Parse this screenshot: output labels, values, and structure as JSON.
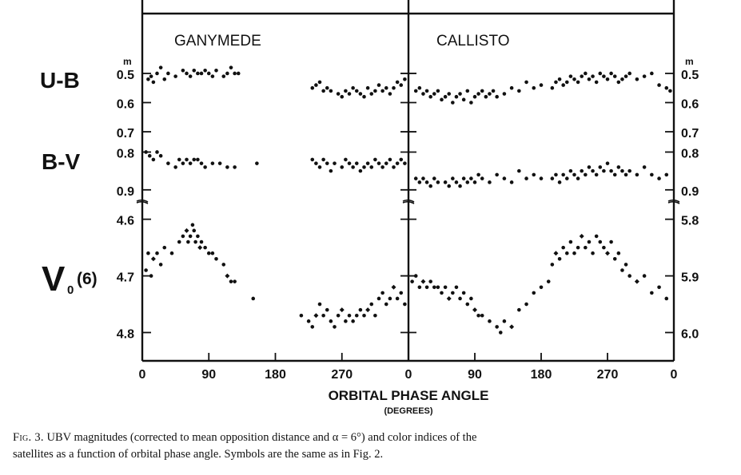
{
  "figure": {
    "panels": [
      {
        "id": "ganymede",
        "title": "GANYMEDE",
        "x_ticks": [
          "0",
          "90",
          "180",
          "270"
        ]
      },
      {
        "id": "callisto",
        "title": "CALLISTO",
        "x_ticks": [
          "0",
          "90",
          "180",
          "270",
          "0"
        ]
      }
    ],
    "row_labels": {
      "ub": "U-B",
      "bv": "B-V",
      "v0_main": "V",
      "v0_sub": "0",
      "v0_paren": "(6)"
    },
    "mag_superscript": "m",
    "left_ticks": {
      "ub": [
        "0.5",
        "0.6",
        "0.7"
      ],
      "bv": [
        "0.8",
        "0.9"
      ],
      "v": [
        "4.6",
        "4.7",
        "4.8"
      ]
    },
    "right_ticks": {
      "ub": [
        "0.5",
        "0.6",
        "0.7"
      ],
      "bv": [
        "0.8",
        "0.9"
      ],
      "v": [
        "5.8",
        "5.9",
        "6.0"
      ]
    },
    "x_axis_label": "ORBITAL PHASE ANGLE",
    "x_axis_units": "(DEGREES)"
  },
  "caption": {
    "lead": "Fig. 3.",
    "line1": " UBV magnitudes (corrected to mean opposition distance and α = 6°) and color indices of the",
    "line2": "satellites as a function of orbital phase angle. Symbols are the same as in Fig. 2."
  },
  "chart_data": [
    {
      "type": "scatter",
      "title": "GANYMEDE",
      "xlabel": "ORBITAL PHASE ANGLE",
      "xlim": [
        0,
        360
      ],
      "series": [
        {
          "name": "U-B",
          "ylim": [
            0.47,
            0.73
          ],
          "x": [
            8,
            12,
            15,
            20,
            25,
            30,
            35,
            45,
            55,
            60,
            65,
            70,
            75,
            80,
            85,
            90,
            95,
            100,
            110,
            115,
            120,
            125,
            130,
            230,
            235,
            240,
            245,
            250,
            255,
            265,
            270,
            275,
            280,
            285,
            290,
            295,
            300,
            305,
            310,
            315,
            320,
            325,
            330,
            335,
            340,
            345,
            350,
            355
          ],
          "y": [
            0.52,
            0.51,
            0.53,
            0.5,
            0.48,
            0.52,
            0.5,
            0.51,
            0.49,
            0.5,
            0.51,
            0.49,
            0.5,
            0.5,
            0.49,
            0.5,
            0.51,
            0.49,
            0.51,
            0.5,
            0.48,
            0.5,
            0.5,
            0.55,
            0.54,
            0.53,
            0.56,
            0.55,
            0.56,
            0.57,
            0.58,
            0.56,
            0.57,
            0.55,
            0.56,
            0.57,
            0.58,
            0.55,
            0.57,
            0.56,
            0.54,
            0.56,
            0.55,
            0.57,
            0.55,
            0.53,
            0.54,
            0.52
          ]
        },
        {
          "name": "B-V",
          "ylim": [
            0.78,
            0.93
          ],
          "x": [
            5,
            10,
            15,
            20,
            25,
            35,
            45,
            50,
            55,
            60,
            65,
            70,
            75,
            80,
            85,
            95,
            105,
            115,
            125,
            155,
            230,
            235,
            240,
            245,
            250,
            255,
            260,
            270,
            275,
            280,
            285,
            290,
            295,
            300,
            305,
            310,
            315,
            320,
            325,
            330,
            335,
            340,
            345,
            350,
            355
          ],
          "y": [
            0.8,
            0.81,
            0.82,
            0.8,
            0.81,
            0.83,
            0.84,
            0.82,
            0.83,
            0.82,
            0.83,
            0.82,
            0.82,
            0.83,
            0.84,
            0.83,
            0.83,
            0.84,
            0.84,
            0.83,
            0.82,
            0.83,
            0.84,
            0.82,
            0.83,
            0.85,
            0.83,
            0.84,
            0.82,
            0.83,
            0.84,
            0.83,
            0.85,
            0.84,
            0.83,
            0.84,
            0.82,
            0.83,
            0.84,
            0.83,
            0.82,
            0.84,
            0.83,
            0.82,
            0.83
          ]
        },
        {
          "name": "V0(6)",
          "ylim": [
            4.585,
            4.85
          ],
          "x": [
            5,
            8,
            12,
            15,
            20,
            25,
            30,
            40,
            50,
            55,
            60,
            62,
            65,
            68,
            70,
            72,
            75,
            78,
            80,
            85,
            90,
            95,
            100,
            110,
            115,
            120,
            125,
            150,
            215,
            225,
            230,
            235,
            240,
            245,
            250,
            255,
            260,
            265,
            270,
            275,
            280,
            285,
            290,
            295,
            300,
            305,
            310,
            315,
            320,
            325,
            330,
            335,
            340,
            345,
            350,
            355
          ],
          "y": [
            4.69,
            4.66,
            4.7,
            4.67,
            4.66,
            4.68,
            4.65,
            4.66,
            4.64,
            4.63,
            4.62,
            4.64,
            4.63,
            4.61,
            4.62,
            4.64,
            4.63,
            4.65,
            4.64,
            4.65,
            4.66,
            4.66,
            4.67,
            4.68,
            4.7,
            4.71,
            4.71,
            4.74,
            4.77,
            4.78,
            4.79,
            4.77,
            4.75,
            4.77,
            4.76,
            4.78,
            4.79,
            4.77,
            4.76,
            4.78,
            4.77,
            4.78,
            4.77,
            4.76,
            4.77,
            4.76,
            4.75,
            4.77,
            4.74,
            4.73,
            4.75,
            4.74,
            4.72,
            4.74,
            4.73,
            4.75
          ]
        }
      ]
    },
    {
      "type": "scatter",
      "title": "CALLISTO",
      "xlabel": "ORBITAL PHASE ANGLE",
      "xlim": [
        0,
        360
      ],
      "series": [
        {
          "name": "U-B",
          "ylim": [
            0.47,
            0.73
          ],
          "x": [
            10,
            15,
            20,
            25,
            30,
            35,
            40,
            45,
            50,
            55,
            60,
            65,
            70,
            75,
            80,
            85,
            90,
            95,
            100,
            105,
            110,
            115,
            120,
            130,
            140,
            150,
            160,
            170,
            180,
            195,
            200,
            205,
            210,
            215,
            220,
            225,
            230,
            235,
            240,
            245,
            250,
            255,
            260,
            265,
            270,
            275,
            280,
            285,
            290,
            295,
            300,
            310,
            320,
            330,
            340,
            350,
            355
          ],
          "y": [
            0.56,
            0.55,
            0.57,
            0.56,
            0.58,
            0.57,
            0.56,
            0.59,
            0.58,
            0.57,
            0.6,
            0.58,
            0.57,
            0.59,
            0.56,
            0.6,
            0.58,
            0.57,
            0.56,
            0.58,
            0.57,
            0.56,
            0.58,
            0.57,
            0.55,
            0.56,
            0.53,
            0.55,
            0.54,
            0.55,
            0.53,
            0.52,
            0.54,
            0.53,
            0.51,
            0.52,
            0.53,
            0.51,
            0.5,
            0.52,
            0.51,
            0.53,
            0.5,
            0.51,
            0.52,
            0.5,
            0.51,
            0.53,
            0.52,
            0.51,
            0.5,
            0.52,
            0.51,
            0.5,
            0.54,
            0.55,
            0.56
          ]
        },
        {
          "name": "B-V",
          "ylim": [
            0.78,
            0.93
          ],
          "x": [
            10,
            15,
            20,
            25,
            30,
            35,
            40,
            50,
            55,
            60,
            65,
            70,
            75,
            80,
            85,
            90,
            95,
            100,
            110,
            120,
            130,
            140,
            150,
            160,
            170,
            180,
            195,
            200,
            205,
            210,
            215,
            220,
            225,
            230,
            235,
            240,
            245,
            250,
            255,
            260,
            265,
            270,
            275,
            280,
            285,
            290,
            295,
            300,
            310,
            320,
            330,
            340,
            350
          ],
          "y": [
            0.87,
            0.88,
            0.87,
            0.88,
            0.89,
            0.87,
            0.88,
            0.88,
            0.89,
            0.87,
            0.88,
            0.89,
            0.87,
            0.88,
            0.87,
            0.88,
            0.86,
            0.87,
            0.88,
            0.86,
            0.87,
            0.88,
            0.85,
            0.87,
            0.86,
            0.87,
            0.87,
            0.86,
            0.88,
            0.86,
            0.87,
            0.85,
            0.86,
            0.87,
            0.85,
            0.86,
            0.84,
            0.85,
            0.86,
            0.84,
            0.85,
            0.83,
            0.85,
            0.86,
            0.84,
            0.85,
            0.86,
            0.85,
            0.86,
            0.84,
            0.86,
            0.87,
            0.86
          ]
        },
        {
          "name": "V0(6)",
          "ylim": [
            5.785,
            6.05
          ],
          "x": [
            5,
            10,
            15,
            20,
            25,
            30,
            35,
            40,
            45,
            50,
            55,
            60,
            65,
            70,
            75,
            80,
            85,
            90,
            95,
            100,
            110,
            120,
            125,
            130,
            140,
            150,
            160,
            170,
            180,
            190,
            195,
            200,
            205,
            210,
            215,
            220,
            225,
            230,
            235,
            240,
            245,
            250,
            255,
            260,
            265,
            270,
            275,
            280,
            285,
            290,
            295,
            300,
            310,
            320,
            330,
            340,
            350
          ],
          "y": [
            5.91,
            5.9,
            5.92,
            5.91,
            5.92,
            5.91,
            5.92,
            5.92,
            5.93,
            5.92,
            5.94,
            5.93,
            5.92,
            5.94,
            5.93,
            5.95,
            5.94,
            5.96,
            5.97,
            5.97,
            5.98,
            5.99,
            6.0,
            5.98,
            5.99,
            5.96,
            5.95,
            5.93,
            5.92,
            5.91,
            5.88,
            5.86,
            5.87,
            5.85,
            5.86,
            5.84,
            5.86,
            5.85,
            5.83,
            5.85,
            5.84,
            5.86,
            5.83,
            5.84,
            5.85,
            5.86,
            5.84,
            5.87,
            5.86,
            5.89,
            5.88,
            5.9,
            5.91,
            5.9,
            5.93,
            5.92,
            5.94
          ]
        }
      ]
    }
  ]
}
